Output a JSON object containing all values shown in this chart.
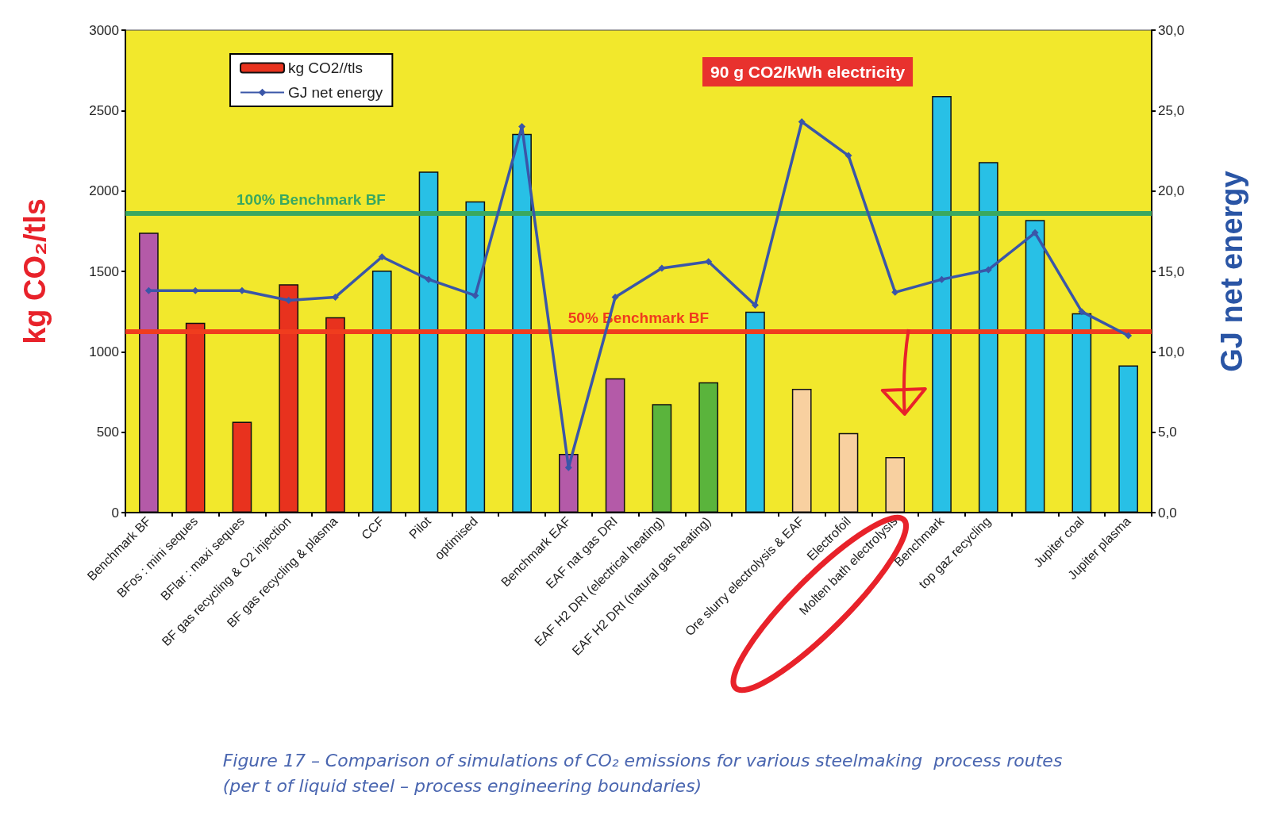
{
  "chart_data": {
    "type": "bar",
    "ylabel": "kg CO₂/tls",
    "y2label": "GJ net energy",
    "categories": [
      "Benchmark BF",
      "BFos : mini seques",
      "BFlar : maxi seques",
      "BF gas recycling & O2 injection",
      "BF gas recycling & plasma",
      "CCF",
      "Pilot",
      "optimised",
      null,
      "Benchmark EAF",
      "EAF nat gas DRI",
      "EAF H2 DRI (electrical heating)",
      "EAF H2 DRI (natural gas heating)",
      null,
      "Ore slurry electrolysis & EAF",
      "Electrofoil",
      "Molten bath electrolysis",
      "Benchmark",
      "top gaz recycling",
      null,
      "Jupiter coal",
      "Jupiter plasma"
    ],
    "series": [
      {
        "name": "kg CO2//tls",
        "color": "#e8321e",
        "values": [
          1740,
          1180,
          565,
          1420,
          1215,
          1505,
          2120,
          1935,
          2355,
          365,
          835,
          675,
          810,
          1250,
          770,
          495,
          345,
          2590,
          2180,
          1820,
          1240,
          915
        ],
        "colors": [
          "#b45aa8",
          "#e8321e",
          "#e8321e",
          "#e8321e",
          "#e8321e",
          "#28c0e6",
          "#28c0e6",
          "#28c0e6",
          "#28c0e6",
          "#b45aa8",
          "#b45aa8",
          "#5ab43c",
          "#5ab43c",
          "#28c0e6",
          "#f8d0a0",
          "#f8d0a0",
          "#f8d0a0",
          "#28c0e6",
          "#28c0e6",
          "#28c0e6",
          "#28c0e6",
          "#28c0e6"
        ]
      },
      {
        "name": "GJ net energy",
        "type": "line",
        "axis": "y2",
        "color": "#3a56a8",
        "marker": "diamond",
        "values": [
          13.8,
          13.8,
          13.8,
          13.2,
          13.4,
          15.9,
          14.5,
          13.5,
          24.0,
          2.8,
          13.4,
          15.2,
          15.6,
          12.9,
          24.3,
          22.2,
          13.7,
          14.5,
          15.1,
          17.4,
          12.5,
          11.0
        ]
      }
    ],
    "ylim": [
      0,
      3000
    ],
    "yticks": [
      0,
      500,
      1000,
      1500,
      2000,
      2500,
      3000
    ],
    "y2lim": [
      0,
      30
    ],
    "y2ticks": [
      {
        "value": 0,
        "label": "0,0"
      },
      {
        "value": 5,
        "label": "5,0"
      },
      {
        "value": 10,
        "label": "10,0"
      },
      {
        "value": 15,
        "label": "15,0"
      },
      {
        "value": 20,
        "label": "20,0"
      },
      {
        "value": 25,
        "label": "25,0"
      },
      {
        "value": 30,
        "label": "30,0"
      }
    ],
    "ref_lines": [
      {
        "axis": "y",
        "value": 1860,
        "label": "100% Benchmark BF",
        "color": "#3aa860"
      },
      {
        "axis": "y",
        "value": 1125,
        "label": "50% Benchmark BF",
        "color": "#f03c1e"
      }
    ],
    "annotations": [
      "90 g CO2/kWh electricity",
      "Figure 17 – Comparison of simulations of CO₂ emissions for various steelmaking  process routes\n(per t of liquid steel – process engineering boundaries)"
    ],
    "legend": "top left",
    "grid": false
  }
}
